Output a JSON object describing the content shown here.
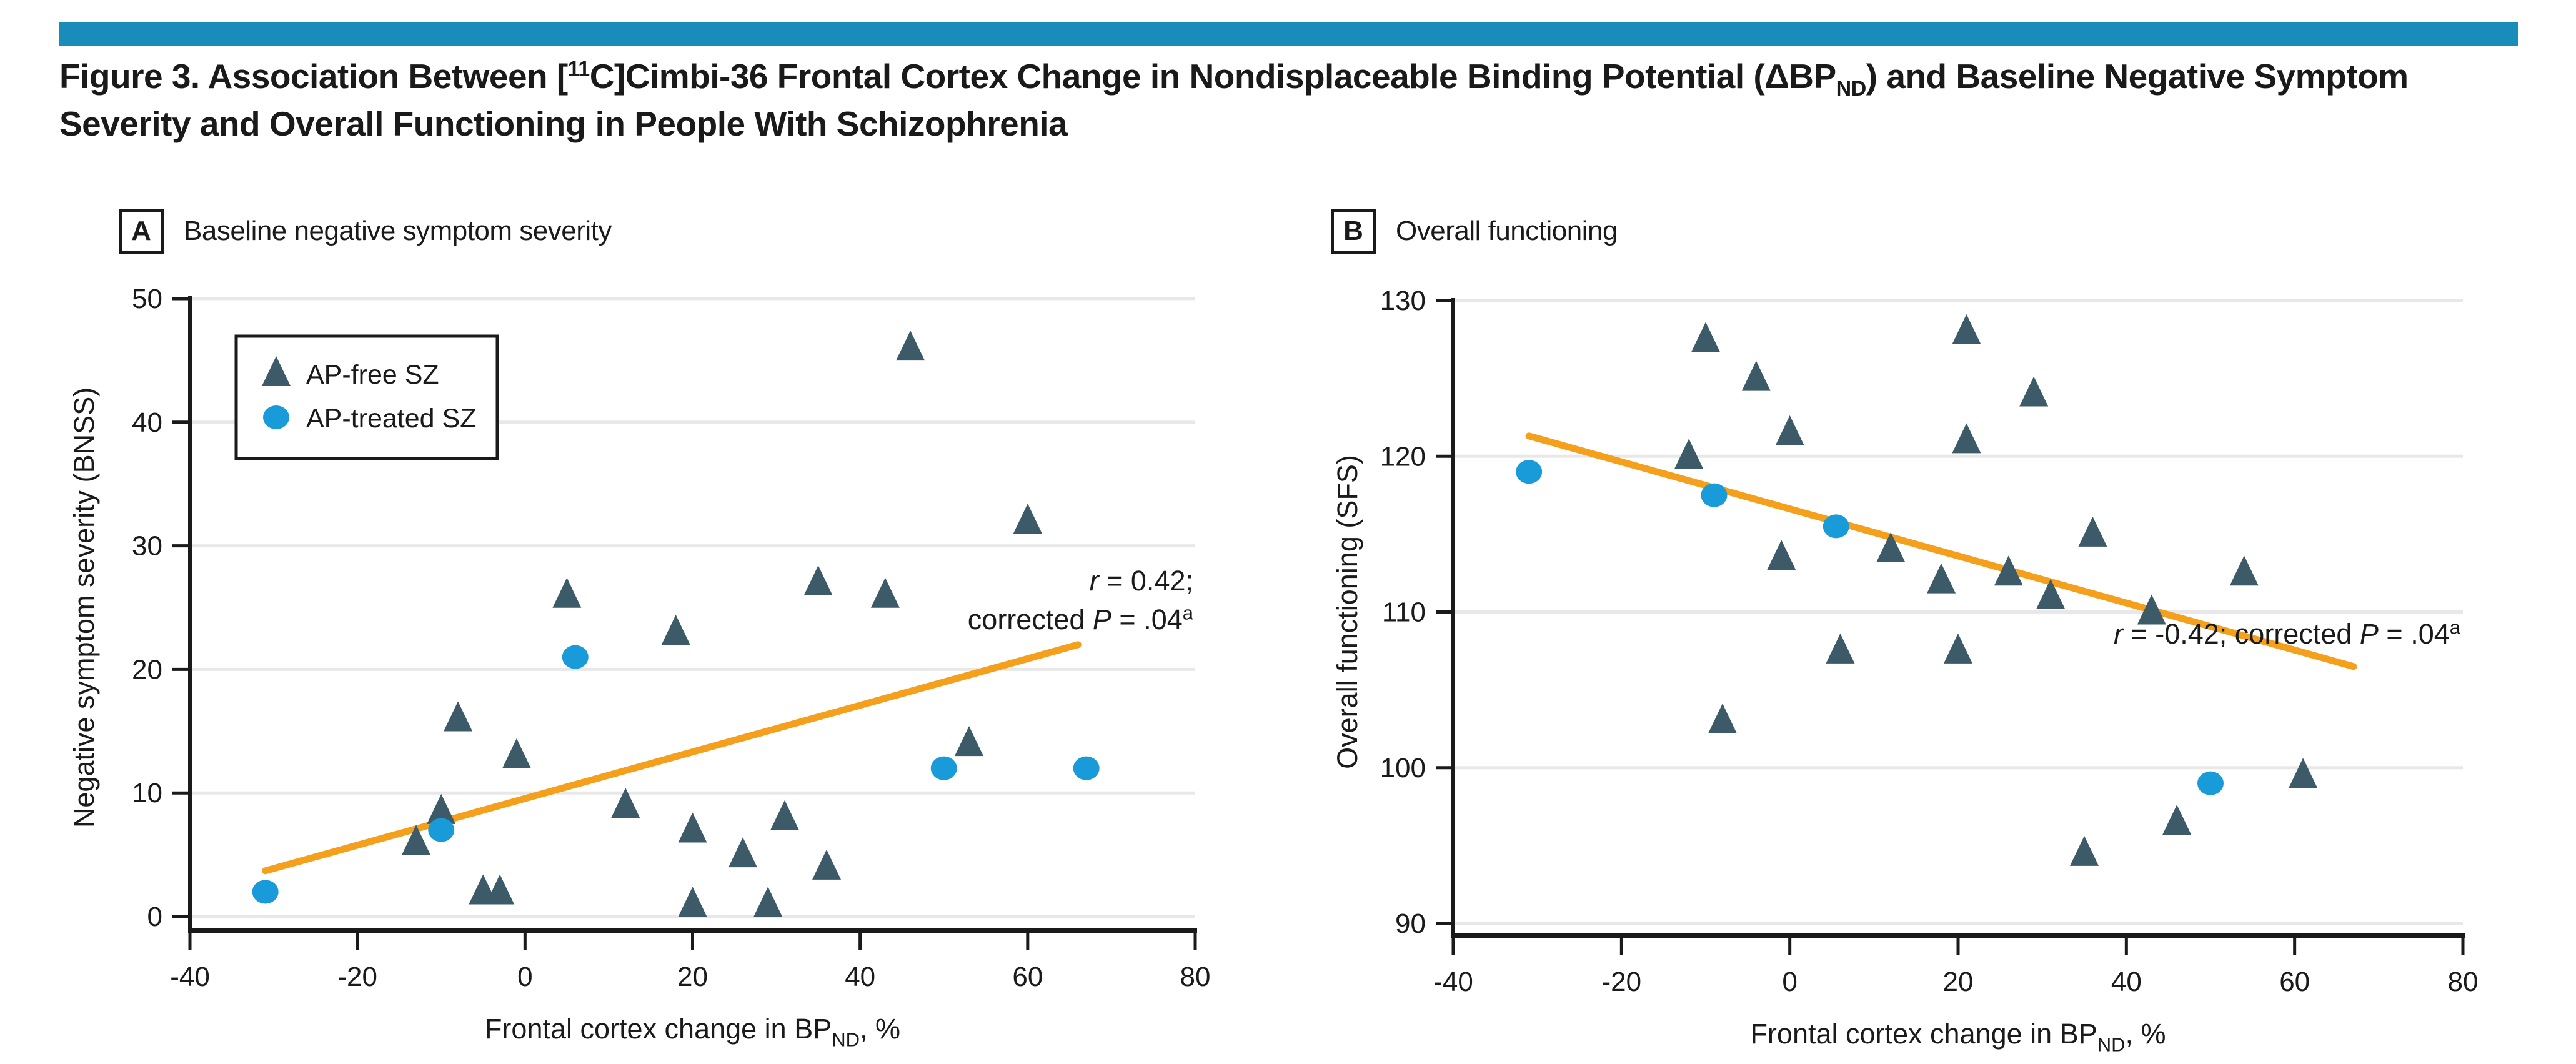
{
  "accent_color": "#1a8cba",
  "title": {
    "part1": "Figure 3. Association Between [",
    "sup1": "11",
    "part2": "C]Cimbi-36 Frontal Cortex Change in Nondisplaceable Binding Potential (ΔBP",
    "sub1": "ND",
    "part3": ") and Baseline Negative Symptom Severity and Overall Functioning in People With Schizophrenia"
  },
  "chart_data": [
    {
      "type": "scatter",
      "panel_letter": "A",
      "panel_title": "Baseline negative symptom severity",
      "ylabel": "Negative symptom severity (BNSS)",
      "xlabel_segments": [
        {
          "t": "Frontal cortex change in BP"
        },
        {
          "t": "ND",
          "sub": true
        },
        {
          "t": ", %"
        }
      ],
      "xlim": [
        -40,
        80
      ],
      "ylim": [
        0,
        50
      ],
      "xticks": [
        -40,
        -20,
        0,
        20,
        40,
        60,
        80
      ],
      "yticks": [
        0,
        10,
        20,
        30,
        40,
        50
      ],
      "grid": true,
      "legend": {
        "position": "upper-left",
        "items": [
          {
            "label": "AP-free SZ",
            "marker": "triangle",
            "color": "#3d5a68"
          },
          {
            "label": "AP-treated SZ",
            "marker": "circle",
            "color": "#189bd8"
          }
        ]
      },
      "series": [
        {
          "name": "AP-free SZ",
          "marker": "triangle",
          "color": "#3d5a68",
          "points": [
            [
              -13,
              6
            ],
            [
              -10,
              8.5
            ],
            [
              -8,
              16
            ],
            [
              -5,
              2
            ],
            [
              -3,
              2
            ],
            [
              -1,
              13
            ],
            [
              5,
              26
            ],
            [
              12,
              9
            ],
            [
              18,
              23
            ],
            [
              20,
              7
            ],
            [
              20,
              1
            ],
            [
              26,
              5
            ],
            [
              29,
              1
            ],
            [
              31,
              8
            ],
            [
              35,
              27
            ],
            [
              36,
              4
            ],
            [
              43,
              26
            ],
            [
              46,
              46
            ],
            [
              53,
              14
            ],
            [
              60,
              32
            ]
          ]
        },
        {
          "name": "AP-treated SZ",
          "marker": "circle",
          "color": "#189bd8",
          "points": [
            [
              -31,
              2
            ],
            [
              -10,
              7
            ],
            [
              6,
              21
            ],
            [
              50,
              12
            ],
            [
              67,
              12
            ]
          ]
        }
      ],
      "trend": {
        "color": "#f5a01c",
        "x1": -31,
        "y1": 3.7,
        "x2": 66,
        "y2": 22
      },
      "annotation": {
        "align": "right",
        "lines": [
          [
            {
              "t": "r",
              "italic": true
            },
            {
              "t": " = 0.42;"
            }
          ],
          [
            {
              "t": "corrected "
            },
            {
              "t": "P",
              "italic": true
            },
            {
              "t": " = .04"
            },
            {
              "t": "a",
              "sup": true
            }
          ]
        ]
      }
    },
    {
      "type": "scatter",
      "panel_letter": "B",
      "panel_title": "Overall functioning",
      "ylabel": "Overall functioning (SFS)",
      "xlabel_segments": [
        {
          "t": "Frontal cortex change in BP"
        },
        {
          "t": "ND",
          "sub": true
        },
        {
          "t": ", %"
        }
      ],
      "xlim": [
        -40,
        80
      ],
      "ylim": [
        90,
        130
      ],
      "xticks": [
        -40,
        -20,
        0,
        20,
        40,
        60,
        80
      ],
      "yticks": [
        90,
        100,
        110,
        120,
        130
      ],
      "grid": true,
      "legend": null,
      "series": [
        {
          "name": "AP-free SZ",
          "marker": "triangle",
          "color": "#3d5a68",
          "points": [
            [
              -12,
              120
            ],
            [
              -10,
              127.5
            ],
            [
              -8,
              103
            ],
            [
              -4,
              125
            ],
            [
              -1,
              113.5
            ],
            [
              0,
              121.5
            ],
            [
              6,
              107.5
            ],
            [
              12,
              114
            ],
            [
              18,
              112
            ],
            [
              20,
              107.5
            ],
            [
              21,
              128
            ],
            [
              21,
              121
            ],
            [
              26,
              112.5
            ],
            [
              29,
              124
            ],
            [
              31,
              111
            ],
            [
              35,
              94.5
            ],
            [
              36,
              115
            ],
            [
              43,
              110
            ],
            [
              46,
              96.5
            ],
            [
              54,
              112.5
            ],
            [
              61,
              99.5
            ]
          ]
        },
        {
          "name": "AP-treated SZ",
          "marker": "circle",
          "color": "#189bd8",
          "points": [
            [
              -31,
              119
            ],
            [
              -9,
              117.5
            ],
            [
              5.5,
              115.5
            ],
            [
              50,
              99
            ]
          ]
        }
      ],
      "trend": {
        "color": "#f5a01c",
        "x1": -31,
        "y1": 121.3,
        "x2": 67,
        "y2": 106.5
      },
      "annotation": {
        "align": "right",
        "lines": [
          [
            {
              "t": "r",
              "italic": true
            },
            {
              "t": " = -0.42; corrected "
            },
            {
              "t": "P",
              "italic": true
            },
            {
              "t": " = .04"
            },
            {
              "t": "a",
              "sup": true
            }
          ]
        ]
      }
    }
  ]
}
